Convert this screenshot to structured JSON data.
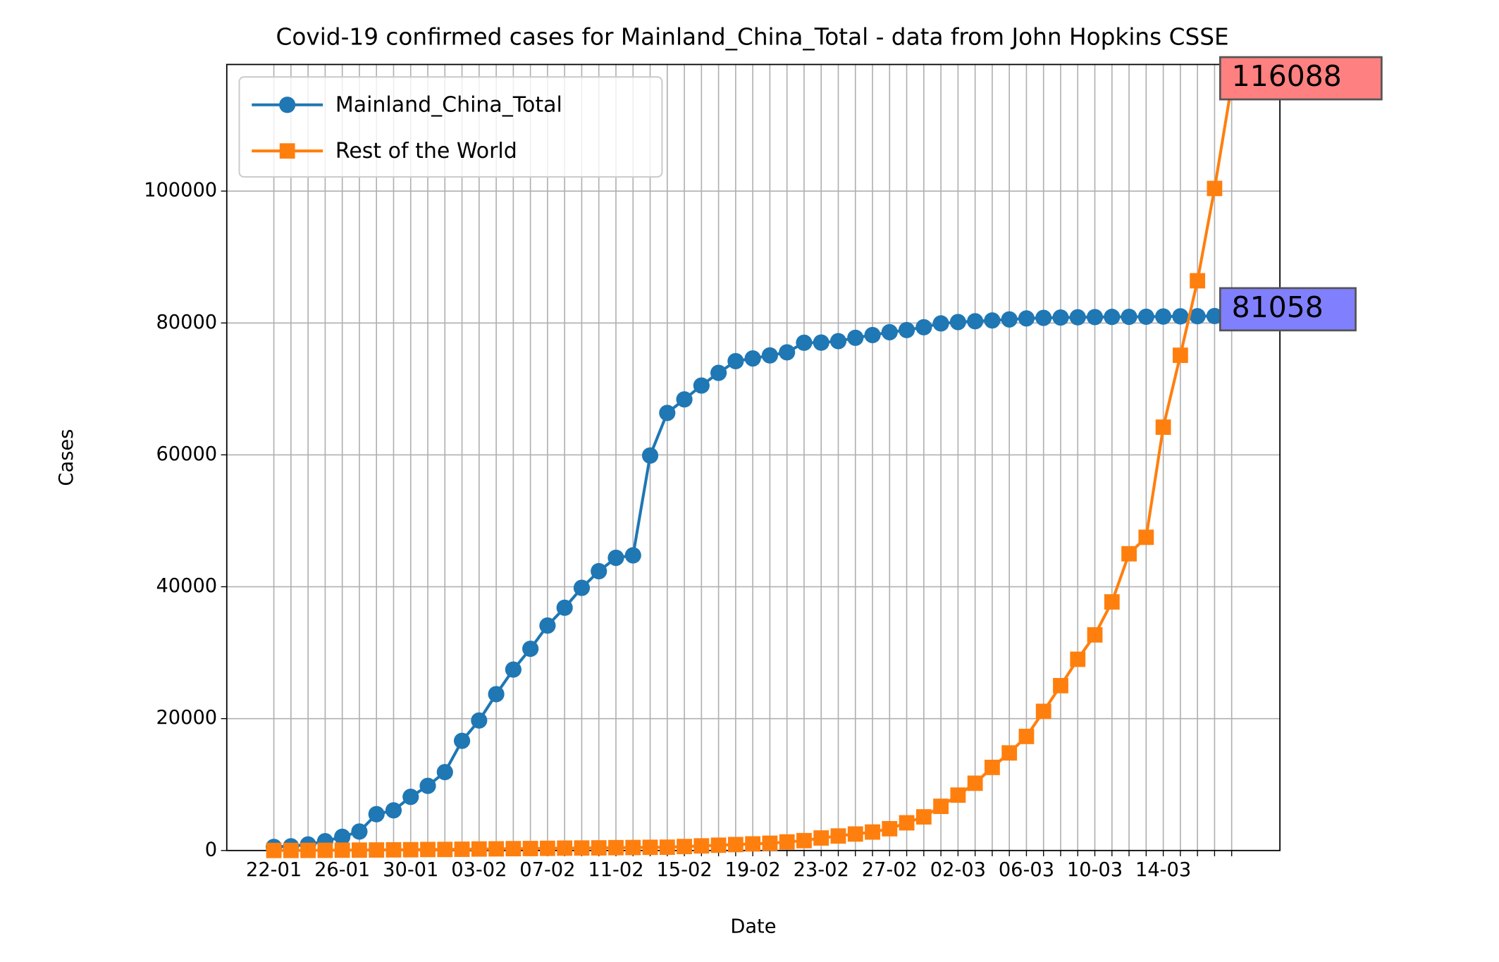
{
  "chart_data": {
    "type": "line",
    "title": "Covid-19 confirmed cases for Mainland_China_Total - data from John Hopkins CSSE",
    "x_label": "Date",
    "y_label": "Cases",
    "categories": [
      "22-01",
      null,
      null,
      null,
      "26-01",
      null,
      null,
      null,
      "30-01",
      null,
      null,
      null,
      "03-02",
      null,
      null,
      null,
      "07-02",
      null,
      null,
      null,
      "11-02",
      null,
      null,
      null,
      "15-02",
      null,
      null,
      null,
      "19-02",
      null,
      null,
      null,
      "23-02",
      null,
      null,
      null,
      "27-02",
      null,
      null,
      null,
      "02-03",
      null,
      null,
      null,
      "06-03",
      null,
      null,
      null,
      "10-03",
      null,
      null,
      null,
      "14-03",
      null,
      null,
      null,
      null
    ],
    "series": [
      {
        "name": "Mainland_China_Total",
        "color": "#1f77b4",
        "marker": "circle",
        "label_color": "#8080ff",
        "end_marker_color": "#1f3fff",
        "values": [
          548,
          643,
          920,
          1406,
          2075,
          2877,
          5509,
          6087,
          8141,
          9802,
          11891,
          16630,
          19716,
          23707,
          27440,
          30587,
          34110,
          36814,
          39829,
          42354,
          44386,
          44759,
          59895,
          66358,
          68413,
          70513,
          72434,
          74211,
          74619,
          75077,
          75550,
          77001,
          77022,
          77241,
          77754,
          78166,
          78600,
          78928,
          79356,
          79932,
          80136,
          80261,
          80386,
          80537,
          80690,
          80770,
          80823,
          80860,
          80887,
          80921,
          80932,
          80945,
          80977,
          81003,
          81021,
          81048,
          81058
        ]
      },
      {
        "name": "Rest of the World",
        "color": "#ff7f0e",
        "marker": "square",
        "label_color": "#ff8080",
        "end_marker_color": "#ff2a00",
        "values": [
          7,
          12,
          20,
          30,
          50,
          60,
          80,
          100,
          120,
          150,
          160,
          190,
          230,
          250,
          280,
          300,
          330,
          360,
          380,
          400,
          430,
          450,
          480,
          500,
          600,
          700,
          800,
          900,
          1000,
          1100,
          1300,
          1500,
          1900,
          2200,
          2500,
          2800,
          3300,
          4200,
          5100,
          6700,
          8400,
          10200,
          12600,
          14800,
          17300,
          21100,
          25000,
          29000,
          32700,
          37700,
          45000,
          47500,
          64200,
          75100,
          86400,
          100400,
          116088
        ]
      }
    ],
    "ylim": [
      0,
      119200
    ],
    "yticks": [
      0,
      20000,
      40000,
      60000,
      80000,
      100000
    ],
    "grid": true,
    "legend": "upper left"
  }
}
